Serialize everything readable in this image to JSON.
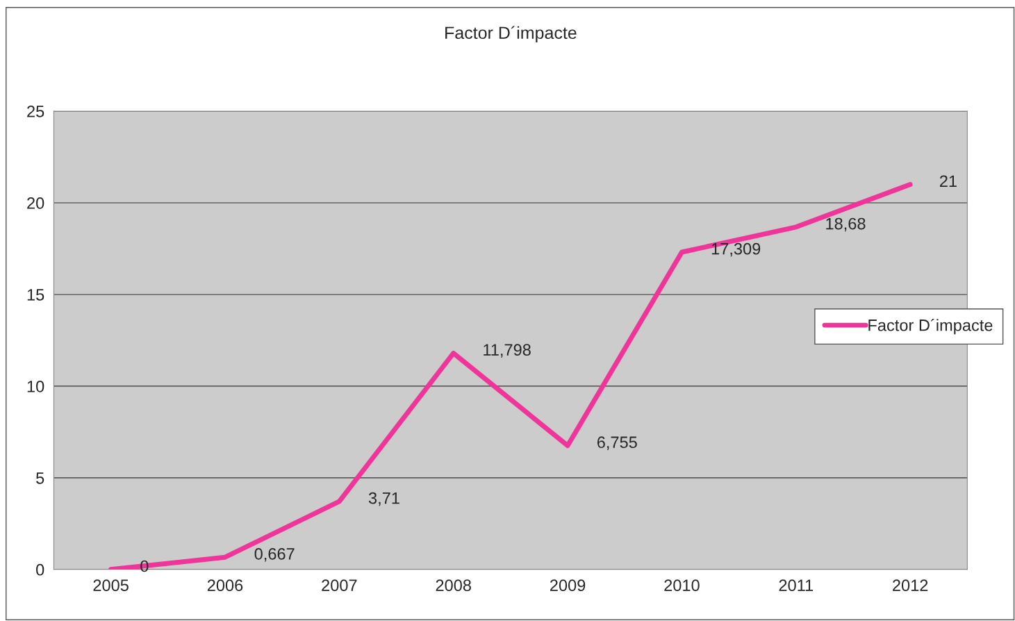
{
  "chart_data": {
    "type": "line",
    "title": "Factor D´impacte",
    "categories": [
      "2005",
      "2006",
      "2007",
      "2008",
      "2009",
      "2010",
      "2011",
      "2012"
    ],
    "series": [
      {
        "name": "Factor D´impacte",
        "color": "#f0359a",
        "values": [
          0,
          0.667,
          3.71,
          11.798,
          6.755,
          17.309,
          18.68,
          21
        ],
        "value_labels": [
          "0",
          "0,667",
          "3,71",
          "11,798",
          "6,755",
          "17,309",
          "18,68",
          "21"
        ]
      }
    ],
    "ylim": [
      0,
      25
    ],
    "yticks": [
      0,
      5,
      10,
      15,
      20,
      25
    ],
    "grid": "y",
    "legend": "right",
    "marker": "none",
    "line_style": "solid"
  }
}
